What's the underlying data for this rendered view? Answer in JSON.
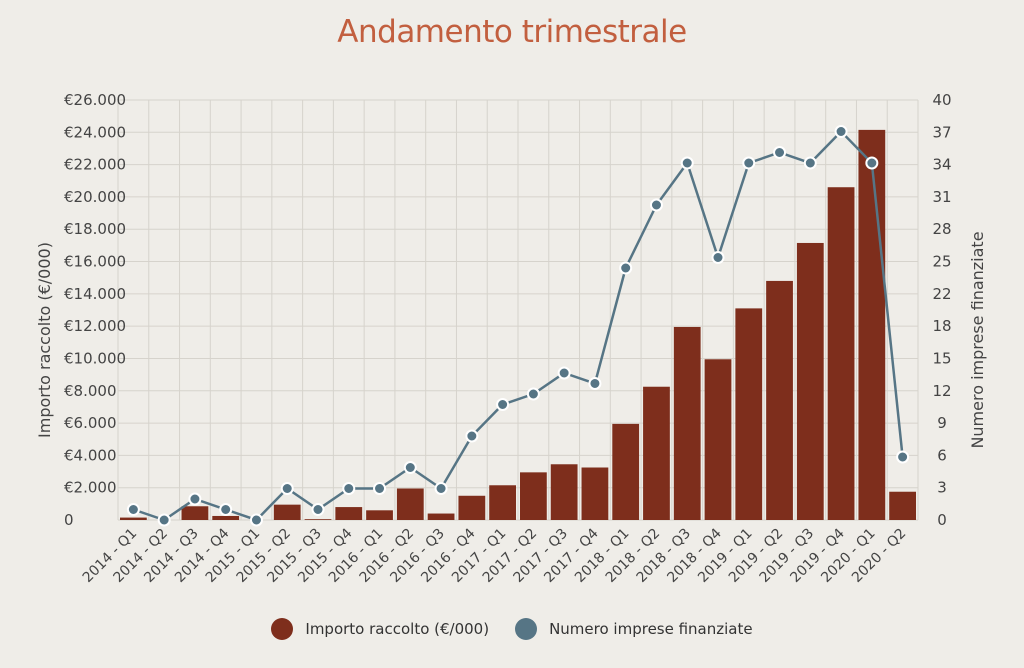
{
  "chart_data": {
    "type": "bar",
    "title": "Andamento trimestrale",
    "ylabel": "Importo raccolto (€/000)",
    "y2label": "Numero imprese finanziate",
    "categories": [
      "2014 - Q1",
      "2014 - Q2",
      "2014 - Q3",
      "2014 - Q4",
      "2015 - Q1",
      "2015 - Q2",
      "2015 - Q3",
      "2015 - Q4",
      "2016 - Q1",
      "2016 - Q2",
      "2016 - Q3",
      "2016 - Q4",
      "2017 - Q1",
      "2017 - Q2",
      "2017 - Q3",
      "2017 - Q4",
      "2018 - Q1",
      "2018 - Q2",
      "2018 - Q3",
      "2018 - Q4",
      "2019 - Q1",
      "2019 - Q2",
      "2019 - Q3",
      "2019 - Q4",
      "2020 - Q1",
      "2020 - Q2"
    ],
    "ylim": [
      0,
      26000
    ],
    "y2lim": [
      0,
      40
    ],
    "y_ticks": [
      "0",
      "€2.000",
      "€4.000",
      "€6.000",
      "€8.000",
      "€10.000",
      "€12.000",
      "€14.000",
      "€16.000",
      "€18.000",
      "€20.000",
      "€22.000",
      "€24.000",
      "€26.000"
    ],
    "y2_ticks": [
      "0",
      "3",
      "6",
      "9",
      "12",
      "15",
      "18",
      "22",
      "25",
      "28",
      "31",
      "34",
      "37",
      "40"
    ],
    "grid": true,
    "legend_position": "bottom",
    "series": [
      {
        "name": "Importo raccolto (€/000)",
        "type": "bar",
        "axis": "left",
        "color": "#7e2e1c",
        "values": [
          150,
          0,
          850,
          250,
          0,
          950,
          50,
          800,
          600,
          1950,
          400,
          1500,
          2150,
          2950,
          3450,
          3250,
          5950,
          8250,
          11950,
          9950,
          13100,
          14800,
          17150,
          20600,
          24150,
          1750
        ]
      },
      {
        "name": "Numero imprese finanziate",
        "type": "line",
        "axis": "right",
        "color": "#567585",
        "values": [
          1,
          0,
          2,
          1,
          0,
          3,
          1,
          3,
          3,
          5,
          3,
          8,
          11,
          12,
          14,
          13,
          24,
          30,
          34,
          25,
          34,
          35,
          34,
          37,
          34,
          6
        ]
      }
    ]
  }
}
